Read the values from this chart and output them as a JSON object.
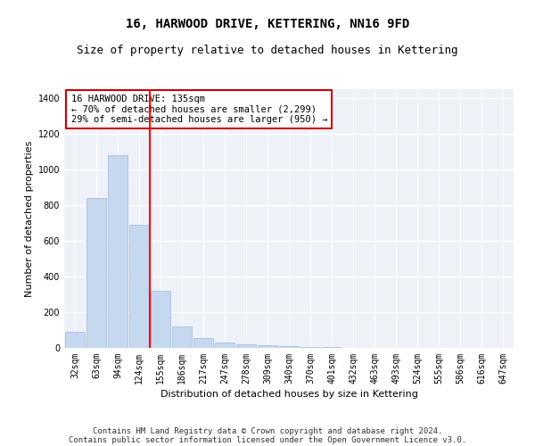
{
  "title": "16, HARWOOD DRIVE, KETTERING, NN16 9FD",
  "subtitle": "Size of property relative to detached houses in Kettering",
  "xlabel": "Distribution of detached houses by size in Kettering",
  "ylabel": "Number of detached properties",
  "categories": [
    "32sqm",
    "63sqm",
    "94sqm",
    "124sqm",
    "155sqm",
    "186sqm",
    "217sqm",
    "247sqm",
    "278sqm",
    "309sqm",
    "340sqm",
    "370sqm",
    "401sqm",
    "432sqm",
    "463sqm",
    "493sqm",
    "524sqm",
    "555sqm",
    "586sqm",
    "616sqm",
    "647sqm"
  ],
  "values": [
    90,
    840,
    1080,
    690,
    320,
    120,
    55,
    30,
    20,
    15,
    10,
    5,
    3,
    0,
    0,
    0,
    0,
    0,
    0,
    0,
    0
  ],
  "bar_color": "#c5d8f0",
  "bar_edge_color": "#a0b8d8",
  "red_line_x": 3.5,
  "annotation_text": "16 HARWOOD DRIVE: 135sqm\n← 70% of detached houses are smaller (2,299)\n29% of semi-detached houses are larger (950) →",
  "annotation_box_color": "#ffffff",
  "annotation_box_edgecolor": "#cc0000",
  "ylim": [
    0,
    1450
  ],
  "yticks": [
    0,
    200,
    400,
    600,
    800,
    1000,
    1200,
    1400
  ],
  "footer_line1": "Contains HM Land Registry data © Crown copyright and database right 2024.",
  "footer_line2": "Contains public sector information licensed under the Open Government Licence v3.0.",
  "bg_color": "#eef2f8",
  "title_fontsize": 10,
  "subtitle_fontsize": 9,
  "axis_label_fontsize": 8,
  "tick_fontsize": 7,
  "annotation_fontsize": 7.5,
  "footer_fontsize": 6.5
}
